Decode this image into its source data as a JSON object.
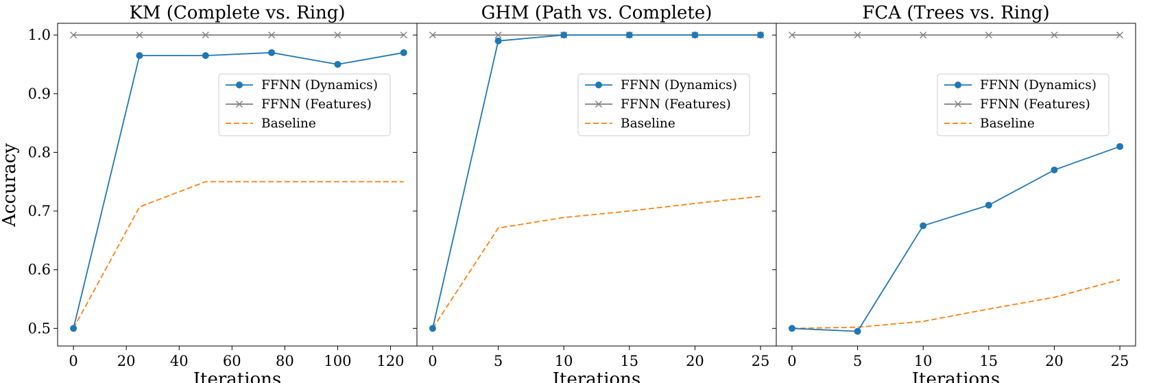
{
  "figure": {
    "ylabel": "Accuracy",
    "colors": {
      "dynamics": "#1f77b4",
      "features": "#7f7f7f",
      "baseline": "#ff7f0e"
    }
  },
  "chart_data": [
    {
      "type": "line",
      "title": "KM (Complete vs. Ring)",
      "xlabel": "Iterations",
      "ylabel": "Accuracy",
      "xlim": [
        -6,
        130
      ],
      "ylim": [
        0.47,
        1.02
      ],
      "xticks": [
        0,
        20,
        40,
        60,
        80,
        100,
        120
      ],
      "yticks": [
        0.5,
        0.6,
        0.7,
        0.8,
        0.9,
        1.0
      ],
      "legend": "upper-right",
      "series": [
        {
          "name": "FFNN (Dynamics)",
          "style": "dynamics",
          "x": [
            0,
            25,
            50,
            75,
            100,
            125
          ],
          "y": [
            0.5,
            0.965,
            0.965,
            0.97,
            0.95,
            0.97
          ]
        },
        {
          "name": "FFNN (Features)",
          "style": "features",
          "x": [
            0,
            25,
            50,
            75,
            100,
            125
          ],
          "y": [
            1.0,
            1.0,
            1.0,
            1.0,
            1.0,
            1.0
          ]
        },
        {
          "name": "Baseline",
          "style": "baseline",
          "x": [
            0,
            25,
            50,
            75,
            100,
            125
          ],
          "y": [
            0.5,
            0.707,
            0.75,
            0.75,
            0.75,
            0.75
          ]
        }
      ]
    },
    {
      "type": "line",
      "title": "GHM (Path vs. Complete)",
      "xlabel": "Iterations",
      "ylabel": "",
      "xlim": [
        -1.2,
        26.2
      ],
      "ylim": [
        0.47,
        1.02
      ],
      "xticks": [
        0,
        5,
        10,
        15,
        20,
        25
      ],
      "yticks": [
        0.5,
        0.6,
        0.7,
        0.8,
        0.9,
        1.0
      ],
      "legend": "upper-right",
      "series": [
        {
          "name": "FFNN (Dynamics)",
          "style": "dynamics",
          "x": [
            0,
            5,
            10,
            15,
            20,
            25
          ],
          "y": [
            0.5,
            0.99,
            1.0,
            1.0,
            1.0,
            1.0
          ]
        },
        {
          "name": "FFNN (Features)",
          "style": "features",
          "x": [
            0,
            5,
            10,
            15,
            20,
            25
          ],
          "y": [
            1.0,
            1.0,
            1.0,
            1.0,
            1.0,
            1.0
          ]
        },
        {
          "name": "Baseline",
          "style": "baseline",
          "x": [
            0,
            5,
            10,
            15,
            20,
            25
          ],
          "y": [
            0.5,
            0.671,
            0.689,
            0.7,
            0.713,
            0.725
          ]
        }
      ]
    },
    {
      "type": "line",
      "title": "FCA (Trees vs. Ring)",
      "xlabel": "Iterations",
      "ylabel": "",
      "xlim": [
        -1.2,
        26.2
      ],
      "ylim": [
        0.47,
        1.02
      ],
      "xticks": [
        0,
        5,
        10,
        15,
        20,
        25
      ],
      "yticks": [
        0.5,
        0.6,
        0.7,
        0.8,
        0.9,
        1.0
      ],
      "legend": "upper-right",
      "series": [
        {
          "name": "FFNN (Dynamics)",
          "style": "dynamics",
          "x": [
            0,
            5,
            10,
            15,
            20,
            25
          ],
          "y": [
            0.5,
            0.495,
            0.675,
            0.71,
            0.77,
            0.81
          ]
        },
        {
          "name": "FFNN (Features)",
          "style": "features",
          "x": [
            0,
            5,
            10,
            15,
            20,
            25
          ],
          "y": [
            1.0,
            1.0,
            1.0,
            1.0,
            1.0,
            1.0
          ]
        },
        {
          "name": "Baseline",
          "style": "baseline",
          "x": [
            0,
            5,
            10,
            15,
            20,
            25
          ],
          "y": [
            0.5,
            0.502,
            0.512,
            0.533,
            0.553,
            0.583
          ]
        }
      ]
    }
  ]
}
